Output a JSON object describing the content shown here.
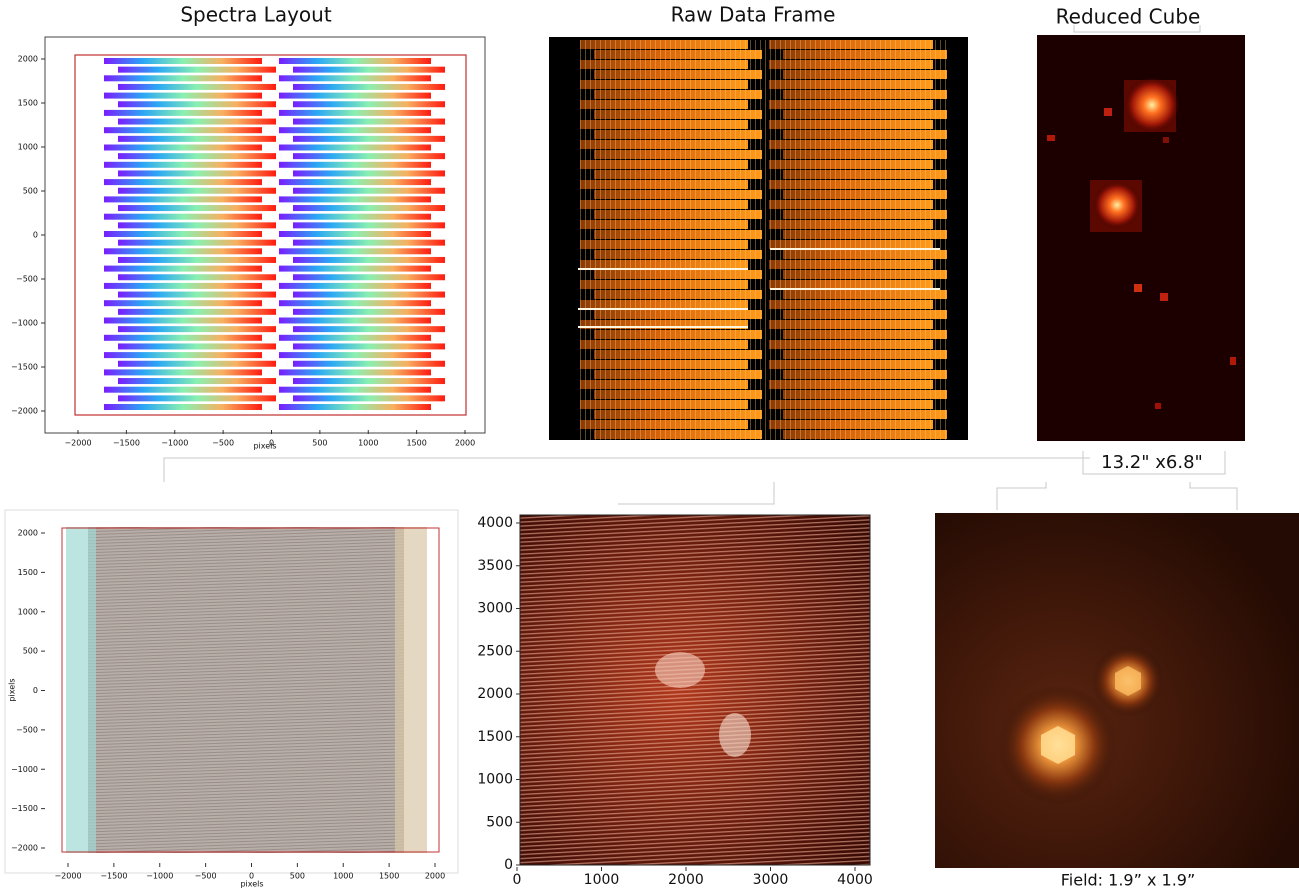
{
  "panels": {
    "spectra_layout": {
      "title": "Spectra Layout",
      "xlabel": "pixels",
      "xticks": [
        "−2000",
        "−1500",
        "−1000",
        "−500",
        "0",
        "500",
        "1000",
        "1500",
        "2000"
      ],
      "yticks": [
        "2000",
        "1500",
        "1000",
        "500",
        "0",
        "−500",
        "−1000",
        "−1500",
        "−2000"
      ]
    },
    "raw_data_frame": {
      "title": "Raw Data Frame"
    },
    "reduced_cube": {
      "title": "Reduced Cube",
      "size": "13.2\" x6.8\""
    },
    "layout_full": {
      "xlabel": "pixels",
      "ylabel": "pixels",
      "xticks": [
        "−2000",
        "−1500",
        "−1000",
        "−500",
        "0",
        "500",
        "1000",
        "1500",
        "2000"
      ],
      "yticks": [
        "2000",
        "1500",
        "1000",
        "500",
        "0",
        "−500",
        "−1000",
        "−1500",
        "−2000"
      ]
    },
    "raw_full": {
      "xticks": [
        "0",
        "1000",
        "2000",
        "3000",
        "4000"
      ],
      "yticks": [
        "4000",
        "3500",
        "3000",
        "2500",
        "2000",
        "1500",
        "1000",
        "500",
        "0"
      ]
    },
    "reduced_field": {
      "caption": "Field: 1.9” x 1.9”"
    }
  }
}
